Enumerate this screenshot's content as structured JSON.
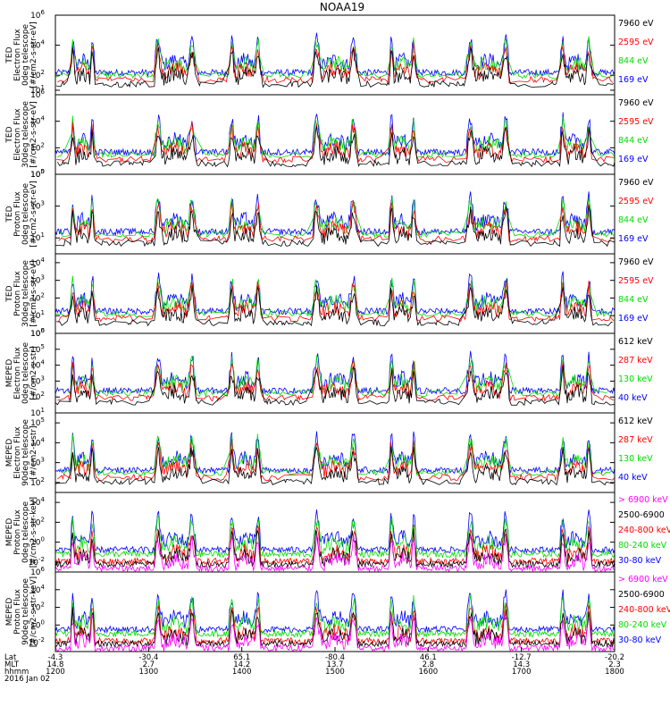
{
  "title": "NOAA19",
  "x_axis": {
    "rows": [
      {
        "label": "Lat",
        "values": [
          "-4.3",
          "-30.4",
          "65.1",
          "-80.4",
          "46.1",
          "-12.7",
          "-20.2"
        ]
      },
      {
        "label": "MLT",
        "values": [
          "14.8",
          "2.7",
          "14.2",
          "13.7",
          "2.8",
          "14.3",
          "2.3"
        ]
      },
      {
        "label": "hhmm",
        "values": [
          "1200",
          "1300",
          "1400",
          "1500",
          "1600",
          "1700",
          "1800"
        ]
      }
    ],
    "date": "2016 Jan 02"
  },
  "colors": {
    "blue": "#0000ff",
    "red": "#ff0000",
    "green": "#00dd00",
    "black": "#000000",
    "magenta": "#ff00ff"
  },
  "panels": [
    {
      "ylabel": [
        "TED",
        "Electron Flux",
        "0deg telescope",
        "[#/cm2-s-str-eV]"
      ],
      "ticks": [
        {
          "exp": "6",
          "level": 6
        },
        {
          "exp": "4",
          "level": 4
        },
        {
          "exp": "2",
          "level": 2
        },
        {
          "exp": "1",
          "level": 1
        }
      ],
      "ymin": 0.7,
      "ymax": 6,
      "legend": [
        {
          "text": "7960 eV",
          "color": "#000000"
        },
        {
          "text": "2595 eV",
          "color": "#ff0000"
        },
        {
          "text": "844 eV",
          "color": "#00dd00"
        },
        {
          "text": "169 eV",
          "color": "#0000ff"
        }
      ]
    },
    {
      "ylabel": [
        "TED",
        "Electron Flux",
        "30deg telescope",
        "[#/cm2-s-str-eV]"
      ],
      "ticks": [
        {
          "exp": "6",
          "level": 6
        },
        {
          "exp": "4",
          "level": 4
        },
        {
          "exp": "2",
          "level": 2
        },
        {
          "exp": "0",
          "level": 0
        }
      ],
      "ymin": 0,
      "ymax": 6,
      "legend": [
        {
          "text": "7960 eV",
          "color": "#000000"
        },
        {
          "text": "2595 eV",
          "color": "#ff0000"
        },
        {
          "text": "844 eV",
          "color": "#00dd00"
        },
        {
          "text": "169 eV",
          "color": "#0000ff"
        }
      ]
    },
    {
      "ylabel": [
        "TED",
        "Proton Flux",
        "0deg telescope",
        "[#/cm2-s-str-eV]"
      ],
      "ticks": [
        {
          "exp": "5",
          "level": 5
        },
        {
          "exp": "3",
          "level": 3
        },
        {
          "exp": "1",
          "level": 1
        }
      ],
      "ymin": 0,
      "ymax": 5,
      "legend": [
        {
          "text": "7960 eV",
          "color": "#000000"
        },
        {
          "text": "2595 eV",
          "color": "#ff0000"
        },
        {
          "text": "844 eV",
          "color": "#00dd00"
        },
        {
          "text": "169 eV",
          "color": "#0000ff"
        }
      ]
    },
    {
      "ylabel": [
        "TED",
        "Proton Flux",
        "30deg telescope",
        "[#/cm2-s-str-eV]"
      ],
      "ticks": [
        {
          "exp": "4",
          "level": 4
        },
        {
          "exp": "3",
          "level": 3
        },
        {
          "exp": "2",
          "level": 2
        },
        {
          "exp": "1",
          "level": 1
        },
        {
          "exp": "0",
          "level": 0
        }
      ],
      "ymin": 0,
      "ymax": 4.5,
      "legend": [
        {
          "text": "7960 eV",
          "color": "#000000"
        },
        {
          "text": "2595 eV",
          "color": "#ff0000"
        },
        {
          "text": "844 eV",
          "color": "#00dd00"
        },
        {
          "text": "169 eV",
          "color": "#0000ff"
        }
      ]
    },
    {
      "ylabel": [
        "MEPED",
        "Electron Flux",
        "0deg telescope",
        "[#/cm2-s-str]"
      ],
      "ticks": [
        {
          "exp": "6",
          "level": 6
        },
        {
          "exp": "5",
          "level": 5
        },
        {
          "exp": "4",
          "level": 4
        },
        {
          "exp": "3",
          "level": 3
        },
        {
          "exp": "2",
          "level": 2
        },
        {
          "exp": "1",
          "level": 1
        }
      ],
      "ymin": 1,
      "ymax": 6,
      "legend": [
        {
          "text": "612 keV",
          "color": "#000000"
        },
        {
          "text": "287 keV",
          "color": "#ff0000"
        },
        {
          "text": "130 keV",
          "color": "#00dd00"
        },
        {
          "text": "40 keV",
          "color": "#0000ff"
        }
      ]
    },
    {
      "ylabel": [
        "MEPED",
        "Electron Flux",
        "90deg telescope",
        "[#/cm2-s-str]"
      ],
      "ticks": [
        {
          "exp": "5",
          "level": 5
        },
        {
          "exp": "4",
          "level": 4
        },
        {
          "exp": "3",
          "level": 3
        },
        {
          "exp": "2",
          "level": 2
        }
      ],
      "ymin": 1.5,
      "ymax": 5.5,
      "legend": [
        {
          "text": "612 keV",
          "color": "#000000"
        },
        {
          "text": "287 keV",
          "color": "#ff0000"
        },
        {
          "text": "130 keV",
          "color": "#00dd00"
        },
        {
          "text": "40 keV",
          "color": "#0000ff"
        }
      ]
    },
    {
      "ylabel": [
        "MEPED",
        "Proton Flux",
        "0deg telescope",
        "[#/cm2-s-str-keV]"
      ],
      "ticks": [
        {
          "exp": "4",
          "level": 4
        },
        {
          "exp": "2",
          "level": 2
        },
        {
          "exp": "0",
          "level": 0
        },
        {
          "exp": "-2",
          "level": -2
        }
      ],
      "ymin": -3,
      "ymax": 5,
      "legend": [
        {
          "text": "> 6900 keV",
          "color": "#ff00ff"
        },
        {
          "text": "2500-6900",
          "color": "#000000"
        },
        {
          "text": "240-800 keV",
          "color": "#ff0000"
        },
        {
          "text": "80-240 keV",
          "color": "#00dd00"
        },
        {
          "text": "30-80 keV",
          "color": "#0000ff"
        }
      ]
    },
    {
      "ylabel": [
        "MEPED",
        "Proton Flux",
        "90deg telescope",
        "[#/cm2-s-str-keV]"
      ],
      "ticks": [
        {
          "exp": "6",
          "level": 6
        },
        {
          "exp": "4",
          "level": 4
        },
        {
          "exp": "2",
          "level": 2
        },
        {
          "exp": "0",
          "level": 0
        },
        {
          "exp": "-2",
          "level": -2
        }
      ],
      "ymin": -3,
      "ymax": 6,
      "legend": [
        {
          "text": "> 6900 keV",
          "color": "#ff00ff"
        },
        {
          "text": "2500-6900",
          "color": "#000000"
        },
        {
          "text": "240-800 keV",
          "color": "#ff0000"
        },
        {
          "text": "80-240 keV",
          "color": "#00dd00"
        },
        {
          "text": "30-80 keV",
          "color": "#0000ff"
        }
      ]
    }
  ],
  "chart_data": {
    "type": "line",
    "title": "NOAA19",
    "x": {
      "unit": "hhmm",
      "range": [
        "1200",
        "1800"
      ],
      "tick_labels": [
        "1200",
        "1300",
        "1400",
        "1500",
        "1600",
        "1700",
        "1800"
      ]
    },
    "y_scale": "log",
    "grid": false,
    "legend": "right of each panel",
    "passes_hhmm": [
      {
        "start": "1210",
        "end": "1225"
      },
      {
        "start": "1304",
        "end": "1330"
      },
      {
        "start": "1352",
        "end": "1412"
      },
      {
        "start": "1446",
        "end": "1514"
      },
      {
        "start": "1535",
        "end": "1552"
      },
      {
        "start": "1625",
        "end": "1652"
      },
      {
        "start": "1725",
        "end": "1745"
      }
    ]
  }
}
